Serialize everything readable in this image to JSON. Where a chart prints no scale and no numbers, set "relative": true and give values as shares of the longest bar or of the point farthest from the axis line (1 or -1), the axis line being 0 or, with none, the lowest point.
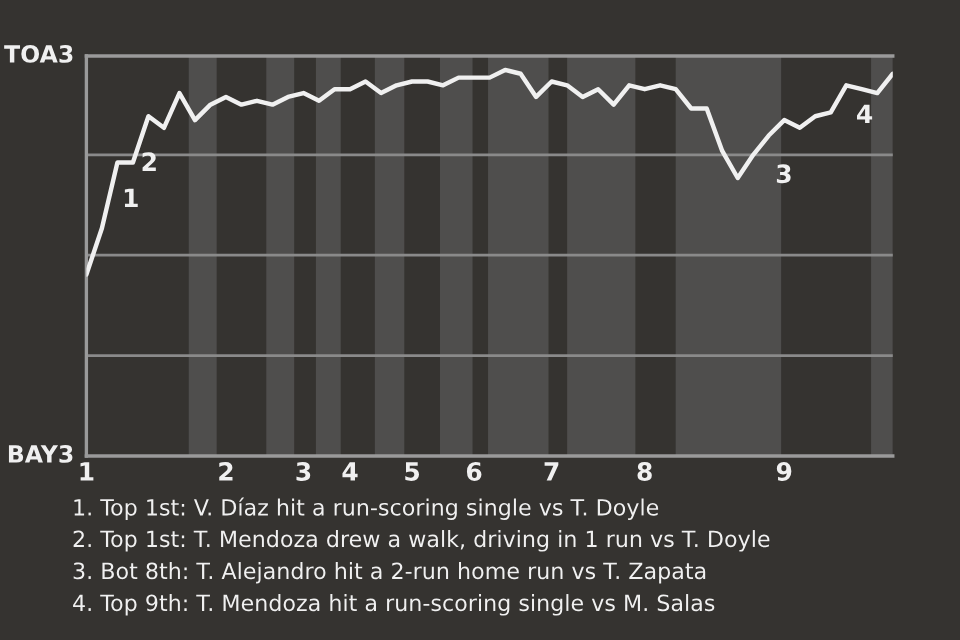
{
  "chart_data": {
    "type": "line",
    "relative": true,
    "categories": [
      "1",
      null,
      null,
      null,
      null,
      null,
      null,
      null,
      null,
      "2",
      null,
      null,
      null,
      null,
      "3",
      null,
      null,
      "4",
      null,
      null,
      null,
      "5",
      null,
      null,
      null,
      "6",
      null,
      null,
      null,
      null,
      "7",
      null,
      null,
      null,
      null,
      null,
      "8",
      null,
      null,
      null,
      null,
      null,
      null,
      null,
      null,
      "9",
      null,
      null,
      null,
      null,
      null,
      null,
      null
    ],
    "series": [
      {
        "color": "#f0f0f0",
        "values": [
          0.47,
          0.59,
          0.76,
          0.76,
          0.88,
          0.85,
          0.94,
          0.87,
          0.91,
          0.93,
          0.91,
          0.92,
          0.91,
          0.93,
          0.94,
          0.92,
          0.95,
          0.95,
          0.97,
          0.94,
          0.96,
          0.97,
          0.97,
          0.96,
          0.98,
          0.98,
          0.98,
          1,
          0.99,
          0.93,
          0.97,
          0.96,
          0.93,
          0.95,
          0.91,
          0.96,
          0.95,
          0.96,
          0.95,
          0.9,
          0.9,
          0.79,
          0.72,
          0.78,
          0.83,
          0.87,
          0.85,
          0.88,
          0.89,
          0.96,
          0.95,
          0.94,
          0.99
        ]
      }
    ],
    "ref_lines": [
      {
        "axis": "y",
        "value": 0.26,
        "color": "#8a8a8a"
      },
      {
        "axis": "y",
        "value": 0.52,
        "color": "#8a8a8a"
      },
      {
        "axis": "y",
        "value": 0.78,
        "color": "#8a8a8a"
      }
    ],
    "annotations": [
      "TOA3",
      "BAY3",
      "1",
      "2",
      "3",
      "4",
      "1. Top 1st: V. Díaz hit a run-scoring single vs T. Doyle",
      "2. Top 1st: T. Mendoza drew a walk, driving in 1 run vs T. Doyle",
      "3. Bot 8th: T. Alejandro hit a 2-run home run vs T. Zapata",
      "4. Top 9th: T. Mendoza hit a run-scoring single vs M. Salas"
    ]
  }
}
